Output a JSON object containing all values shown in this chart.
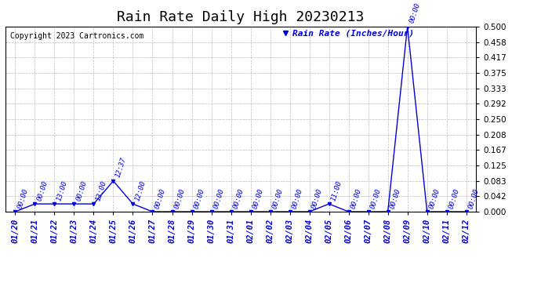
{
  "title": "Rain Rate Daily High 20230213",
  "copyright": "Copyright 2023 Cartronics.com",
  "legend_label": "Rain Rate (Inches/Hour)",
  "x_labels": [
    "01/20",
    "01/21",
    "01/22",
    "01/23",
    "01/24",
    "01/25",
    "01/26",
    "01/27",
    "01/28",
    "01/29",
    "01/30",
    "01/31",
    "02/01",
    "02/02",
    "02/03",
    "02/04",
    "02/05",
    "02/06",
    "02/07",
    "02/08",
    "02/09",
    "02/10",
    "02/11",
    "02/12"
  ],
  "x_values": [
    0,
    1,
    2,
    3,
    4,
    5,
    6,
    7,
    8,
    9,
    10,
    11,
    12,
    13,
    14,
    15,
    16,
    17,
    18,
    19,
    20,
    21,
    22,
    23
  ],
  "y_values": [
    0.0,
    0.021,
    0.021,
    0.021,
    0.021,
    0.083,
    0.021,
    0.0,
    0.0,
    0.0,
    0.0,
    0.0,
    0.0,
    0.0,
    0.0,
    0.0,
    0.021,
    0.0,
    0.0,
    0.0,
    0.5,
    0.0,
    0.0,
    0.0
  ],
  "point_times": [
    "00:00",
    "00:00",
    "13:00",
    "00:00",
    "13:00",
    "12:37",
    "12:00",
    "00:00",
    "00:00",
    "00:00",
    "00:00",
    "00:00",
    "00:00",
    "00:00",
    "00:00",
    "00:00",
    "11:00",
    "00:00",
    "00:00",
    "00:00",
    "00:00",
    "00:00",
    "00:00",
    "00:00"
  ],
  "ylim": [
    0.0,
    0.5
  ],
  "yticks": [
    0.0,
    0.042,
    0.083,
    0.125,
    0.167,
    0.208,
    0.25,
    0.292,
    0.333,
    0.375,
    0.417,
    0.458,
    0.5
  ],
  "line_color": "#0000dd",
  "marker_color": "#0000dd",
  "grid_color": "#bbbbbb",
  "bg_color": "#ffffff",
  "title_fontsize": 13,
  "tick_fontsize": 7.5,
  "copyright_fontsize": 7,
  "legend_fontsize": 8,
  "time_fontsize": 6.5
}
